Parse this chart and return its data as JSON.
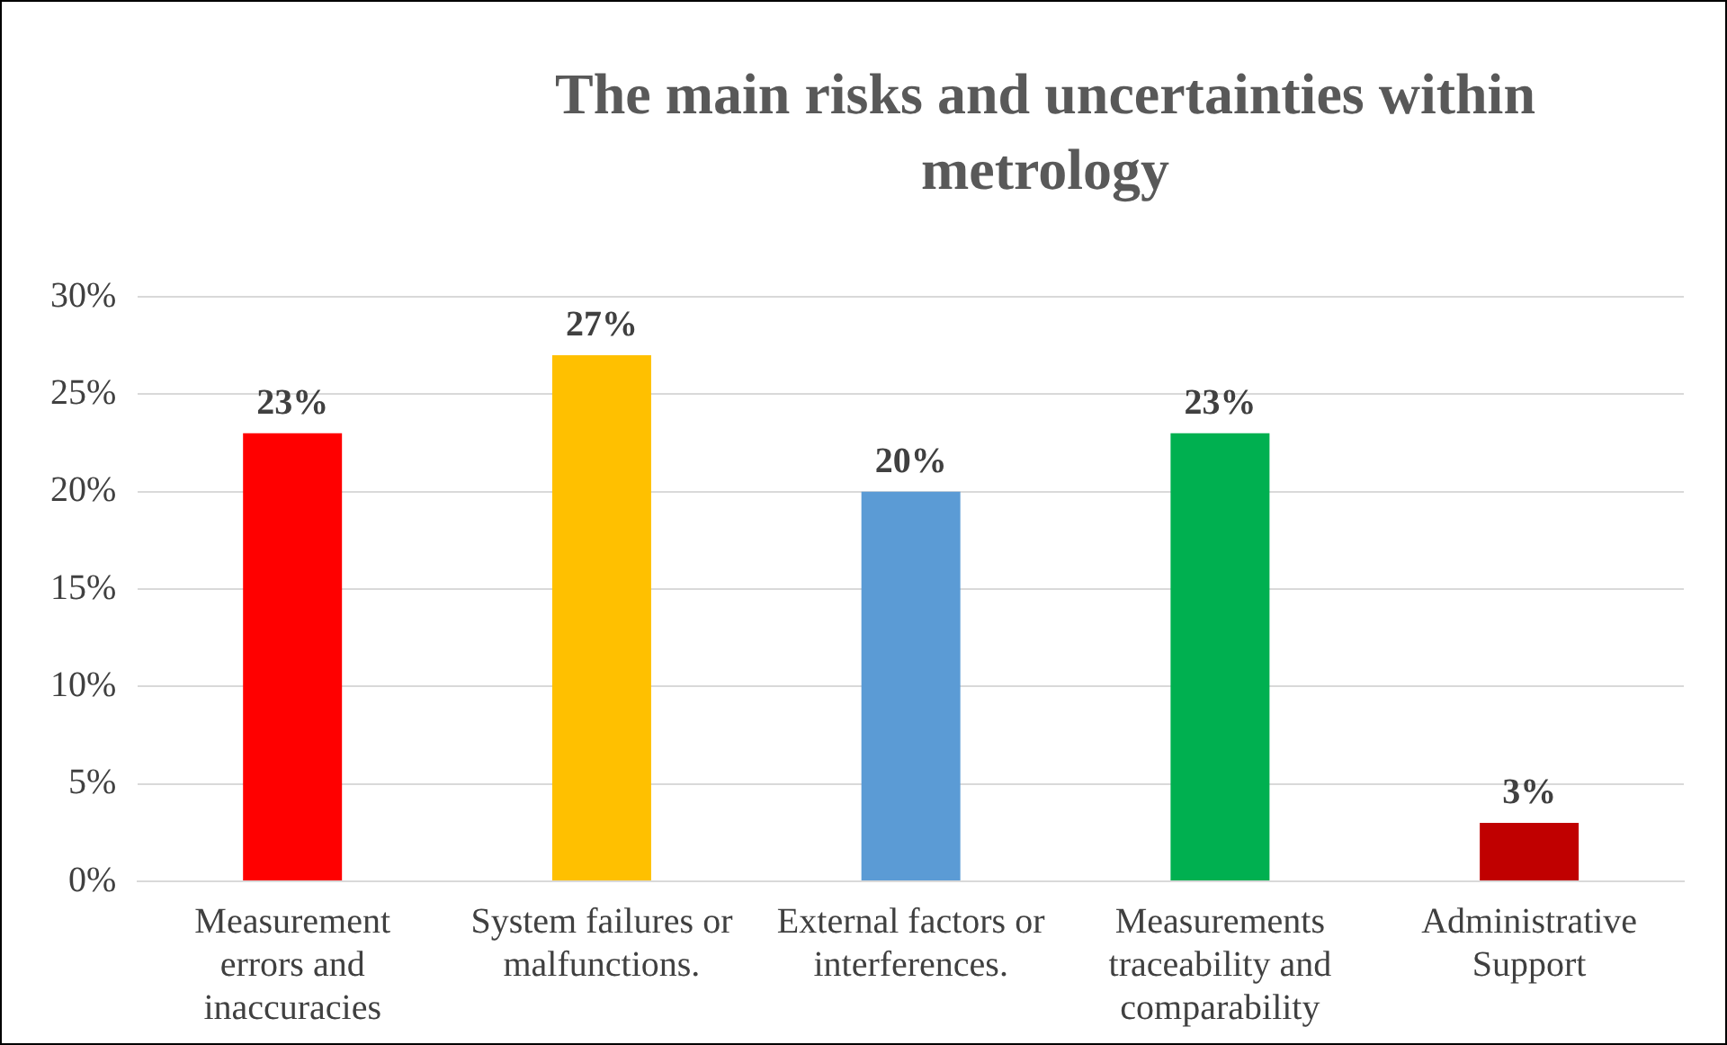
{
  "chart_data": {
    "type": "bar",
    "title": "The main risks and uncertainties within metrology",
    "categories": [
      "Measurement errors and inaccuracies",
      "System failures or malfunctions.",
      "External factors or interferences.",
      "Measurements traceability and comparability",
      "Administrative Support"
    ],
    "values": [
      23,
      27,
      20,
      23,
      3
    ],
    "colors": [
      "#ff0000",
      "#ffc000",
      "#5b9bd5",
      "#00b050",
      "#c00000"
    ],
    "value_labels": [
      "23%",
      "27%",
      "20%",
      "23%",
      "3%"
    ],
    "ylim": [
      0,
      30
    ],
    "yticks": [
      {
        "value": 0,
        "label": "0%"
      },
      {
        "value": 5,
        "label": "5%"
      },
      {
        "value": 10,
        "label": "10%"
      },
      {
        "value": 15,
        "label": "15%"
      },
      {
        "value": 20,
        "label": "20%"
      },
      {
        "value": 25,
        "label": "25%"
      },
      {
        "value": 30,
        "label": "30%"
      }
    ],
    "grid": "y",
    "legend": false
  }
}
